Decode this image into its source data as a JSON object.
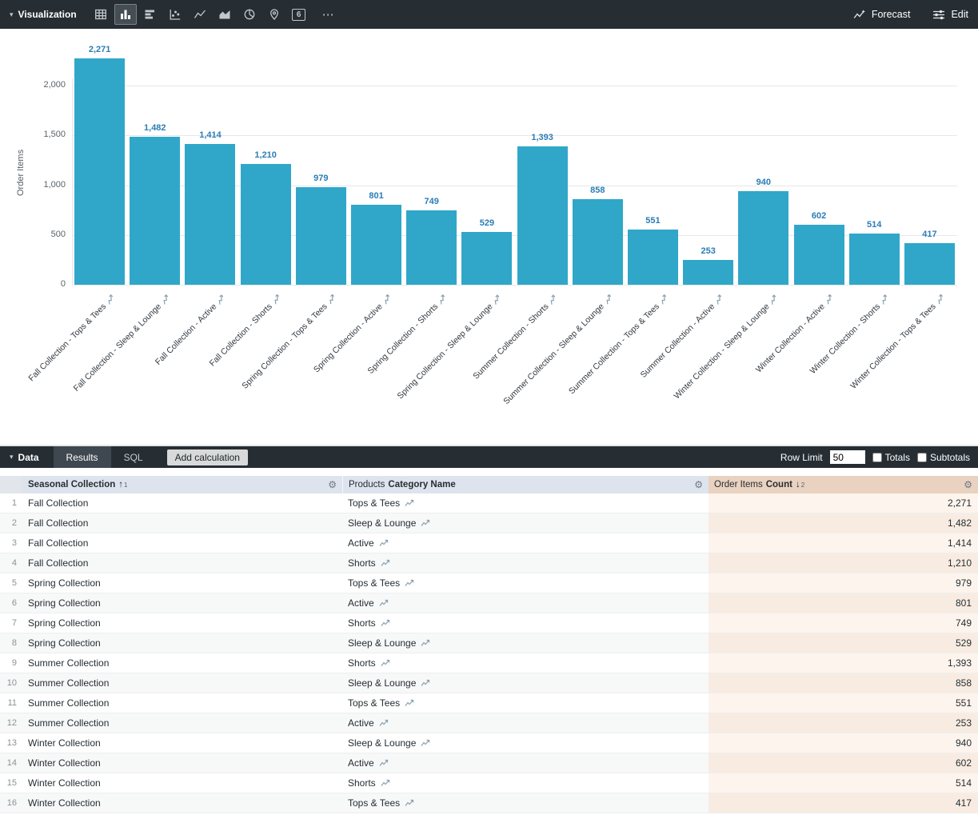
{
  "icons": {
    "caret_down": "▾",
    "gear": "⚙",
    "more": "⋯",
    "single_value_glyph": "6"
  },
  "viz_toolbar": {
    "section_label": "Visualization",
    "forecast_label": "Forecast",
    "edit_label": "Edit"
  },
  "chart_data": {
    "type": "bar",
    "title": "",
    "xlabel": "",
    "ylabel": "Order Items",
    "ylim": [
      0,
      2350
    ],
    "grid": true,
    "legend": false,
    "bar_color": "#30a7c9",
    "label_color": "#2a7db5",
    "tick_values": [
      0,
      500,
      1000,
      1500,
      2000
    ],
    "tick_labels": [
      "0",
      "500",
      "1,000",
      "1,500",
      "2,000"
    ],
    "categories": [
      "Fall Collection - Tops & Tees",
      "Fall Collection - Sleep & Lounge",
      "Fall Collection - Active",
      "Fall Collection - Shorts",
      "Spring Collection - Tops & Tees",
      "Spring Collection - Active",
      "Spring Collection - Shorts",
      "Spring Collection - Sleep & Lounge",
      "Summer Collection - Shorts",
      "Summer Collection - Sleep & Lounge",
      "Summer Collection - Tops & Tees",
      "Summer Collection - Active",
      "Winter Collection - Sleep & Lounge",
      "Winter Collection - Active",
      "Winter Collection - Shorts",
      "Winter Collection - Tops & Tees"
    ],
    "values": [
      2271,
      1482,
      1414,
      1210,
      979,
      801,
      749,
      529,
      1393,
      858,
      551,
      253,
      940,
      602,
      514,
      417
    ],
    "value_labels": [
      "2,271",
      "1,482",
      "1,414",
      "1,210",
      "979",
      "801",
      "749",
      "529",
      "1,393",
      "858",
      "551",
      "253",
      "940",
      "602",
      "514",
      "417"
    ]
  },
  "data_toolbar": {
    "section_label": "Data",
    "tabs": [
      {
        "label": "Results"
      },
      {
        "label": "SQL"
      }
    ],
    "active_tab": "Results",
    "add_calculation_label": "Add calculation",
    "row_limit_label": "Row Limit",
    "row_limit_value": "50",
    "totals_label": "Totals",
    "subtotals_label": "Subtotals"
  },
  "table": {
    "columns": [
      {
        "view": "",
        "field": "Seasonal Collection",
        "sort_arrow": "↑",
        "sort_index": "1"
      },
      {
        "view": "Products",
        "field": "Category Name",
        "sort_arrow": "",
        "sort_index": ""
      },
      {
        "view": "Order Items",
        "field": "Count",
        "sort_arrow": "↓",
        "sort_index": "2"
      }
    ],
    "rows": [
      {
        "n": "1",
        "collection": "Fall Collection",
        "category": "Tops & Tees",
        "count": "2,271"
      },
      {
        "n": "2",
        "collection": "Fall Collection",
        "category": "Sleep & Lounge",
        "count": "1,482"
      },
      {
        "n": "3",
        "collection": "Fall Collection",
        "category": "Active",
        "count": "1,414"
      },
      {
        "n": "4",
        "collection": "Fall Collection",
        "category": "Shorts",
        "count": "1,210"
      },
      {
        "n": "5",
        "collection": "Spring Collection",
        "category": "Tops & Tees",
        "count": "979"
      },
      {
        "n": "6",
        "collection": "Spring Collection",
        "category": "Active",
        "count": "801"
      },
      {
        "n": "7",
        "collection": "Spring Collection",
        "category": "Shorts",
        "count": "749"
      },
      {
        "n": "8",
        "collection": "Spring Collection",
        "category": "Sleep & Lounge",
        "count": "529"
      },
      {
        "n": "9",
        "collection": "Summer Collection",
        "category": "Shorts",
        "count": "1,393"
      },
      {
        "n": "10",
        "collection": "Summer Collection",
        "category": "Sleep & Lounge",
        "count": "858"
      },
      {
        "n": "11",
        "collection": "Summer Collection",
        "category": "Tops & Tees",
        "count": "551"
      },
      {
        "n": "12",
        "collection": "Summer Collection",
        "category": "Active",
        "count": "253"
      },
      {
        "n": "13",
        "collection": "Winter Collection",
        "category": "Sleep & Lounge",
        "count": "940"
      },
      {
        "n": "14",
        "collection": "Winter Collection",
        "category": "Active",
        "count": "602"
      },
      {
        "n": "15",
        "collection": "Winter Collection",
        "category": "Shorts",
        "count": "514"
      },
      {
        "n": "16",
        "collection": "Winter Collection",
        "category": "Tops & Tees",
        "count": "417"
      }
    ]
  }
}
